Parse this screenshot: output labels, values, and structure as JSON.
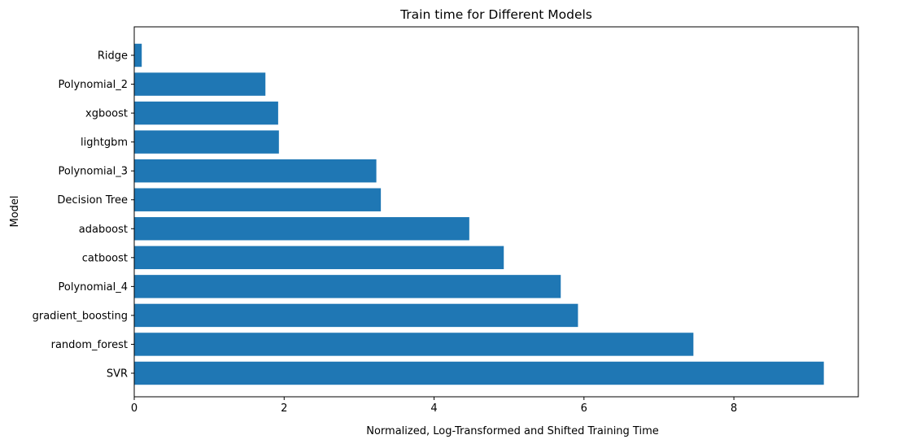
{
  "chart_data": {
    "type": "bar",
    "orientation": "horizontal",
    "title": "Train time for Different Models",
    "xlabel": "Normalized, Log-Transformed and Shifted Training Time",
    "ylabel": "Model",
    "categories": [
      "SVR",
      "random_forest",
      "gradient_boosting",
      "Polynomial_4",
      "catboost",
      "adaboost",
      "Decision Tree",
      "Polynomial_3",
      "lightgbm",
      "xgboost",
      "Polynomial_2",
      "Ridge"
    ],
    "values": [
      9.2,
      7.46,
      5.92,
      5.69,
      4.93,
      4.47,
      3.29,
      3.23,
      1.93,
      1.92,
      1.75,
      0.1
    ],
    "xlim": [
      0,
      9.66
    ],
    "xticks": [
      "0",
      "2",
      "4",
      "6",
      "8"
    ],
    "bar_color": "#1f77b4",
    "grid": false,
    "legend": "none"
  }
}
